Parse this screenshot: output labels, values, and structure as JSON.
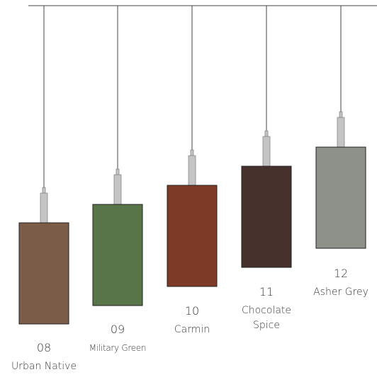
{
  "items": [
    {
      "number": "08",
      "name_lines": [
        "Urban Native"
      ]
    },
    {
      "number": "09",
      "name_lines": [
        "Military Green"
      ]
    },
    {
      "number": "10",
      "name_lines": [
        "Carmin"
      ]
    },
    {
      "number": "11",
      "name_lines": [
        "Chocolate",
        "Spice"
      ]
    },
    {
      "number": "12",
      "name_lines": [
        "Asher Grey"
      ]
    }
  ]
}
